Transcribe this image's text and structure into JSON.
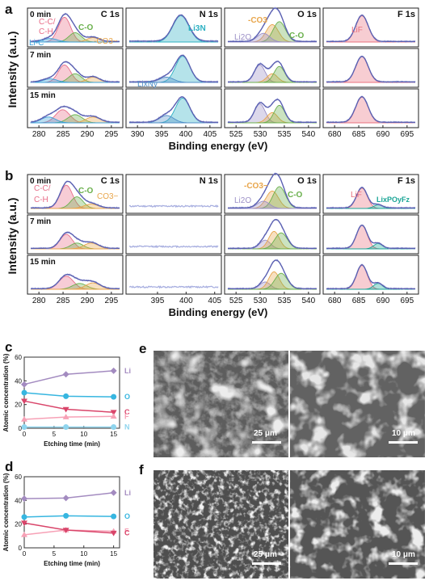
{
  "panel_letters": {
    "a": "a",
    "b": "b",
    "c": "c",
    "d": "d",
    "e": "e",
    "f": "f"
  },
  "xps_common": {
    "ylabel": "Intensity (a.u.)",
    "xlabel": "Binding energy (eV)",
    "times": [
      "0 min",
      "7 min",
      "15 min"
    ],
    "regions": [
      {
        "key": "C",
        "label": "C 1s",
        "ticks": [
          "280",
          "285",
          "290",
          "295"
        ]
      },
      {
        "key": "N",
        "label": "N 1s",
        "ticks": [
          "390",
          "395",
          "400",
          "405"
        ]
      },
      {
        "key": "O",
        "label": "O 1s",
        "ticks": [
          "525",
          "530",
          "535",
          "540"
        ]
      },
      {
        "key": "F",
        "label": "F 1s",
        "ticks": [
          "680",
          "685",
          "690",
          "695"
        ]
      }
    ]
  },
  "xps_b_ticks": {
    "C": [
      "280",
      "285",
      "290",
      "295"
    ],
    "N": [
      "395",
      "400",
      "405"
    ],
    "O": [
      "525",
      "530",
      "535",
      "540"
    ],
    "F": [
      "680",
      "685",
      "690",
      "695"
    ]
  },
  "annotations_a": {
    "c_cc": "C-C/",
    "c_ch": "C-H",
    "c_co": "C-O",
    "c_co3": "-CO3−",
    "c_lic": "Li-C",
    "n_li3n": "Li3N",
    "n_lixny": "LixNy",
    "o_co3": "-CO3",
    "o_li2o": "Li2O",
    "o_co": "C-O",
    "f_lif": "LiF"
  },
  "annotations_b": {
    "c_cc": "C-C/",
    "c_ch": "C-H",
    "c_co": "C-O",
    "c_co3": "CO3−",
    "o_co3": "-CO3−",
    "o_li2o": "Li2O",
    "o_co": "C-O",
    "f_lif": "LiF",
    "f_lipof": "LixPOyFz"
  },
  "colors": {
    "envelope": "#5a5fb0",
    "points": "#9fa6dd",
    "cc": "#e86d88",
    "co": "#6ab04c",
    "co3": "#e8a54a",
    "lic": "#3aa0d8",
    "li3n": "#2bb0c2",
    "lixny": "#4f8fc8",
    "li2o": "#9b8fc6",
    "lif": "#e8707e",
    "lipof": "#1aa596"
  },
  "chart_data": [
    {
      "type": "line",
      "panel": "c",
      "xlabel": "Etching time (min)",
      "ylabel": "Atomic concentration (%)",
      "x": [
        0,
        7,
        15
      ],
      "xlim": [
        0,
        16
      ],
      "ylim": [
        0,
        60
      ],
      "yticks": [
        "0",
        "20",
        "40",
        "60"
      ],
      "xticks": [
        "0",
        "5",
        "10",
        "15"
      ],
      "series": [
        {
          "name": "Li",
          "values": [
            37,
            45.5,
            48.5
          ],
          "color": "#a38bc0",
          "marker": "diamond"
        },
        {
          "name": "O",
          "values": [
            30,
            27,
            26.5
          ],
          "color": "#37b6e0",
          "marker": "circle"
        },
        {
          "name": "C",
          "values": [
            23,
            16,
            13.5
          ],
          "color": "#d9456a",
          "marker": "triangle-down"
        },
        {
          "name": "F",
          "values": [
            7.5,
            9.5,
            10
          ],
          "color": "#f7a1b6",
          "marker": "triangle-up"
        },
        {
          "name": "N",
          "values": [
            1,
            1,
            1
          ],
          "color": "#8fd5ee",
          "marker": "circle"
        }
      ]
    },
    {
      "type": "line",
      "panel": "d",
      "xlabel": "Etching time (min)",
      "ylabel": "Atomic concentration (%)",
      "x": [
        0,
        7,
        15
      ],
      "xlim": [
        0,
        16
      ],
      "ylim": [
        0,
        60
      ],
      "yticks": [
        "0",
        "20",
        "40",
        "60"
      ],
      "xticks": [
        "0",
        "5",
        "10",
        "15"
      ],
      "series": [
        {
          "name": "Li",
          "values": [
            41.5,
            42,
            46.5
          ],
          "color": "#a38bc0",
          "marker": "diamond"
        },
        {
          "name": "O",
          "values": [
            26,
            27,
            26.5
          ],
          "color": "#37b6e0",
          "marker": "circle"
        },
        {
          "name": "F",
          "values": [
            11,
            15,
            14
          ],
          "color": "#f7a1b6",
          "marker": "triangle-up"
        },
        {
          "name": "C",
          "values": [
            21,
            15,
            12.5
          ],
          "color": "#d9456a",
          "marker": "triangle-down"
        }
      ]
    }
  ],
  "sem": {
    "e_left": "25 μm",
    "e_right": "10 μm",
    "f_left": "25 μm",
    "f_right": "10 μm"
  }
}
